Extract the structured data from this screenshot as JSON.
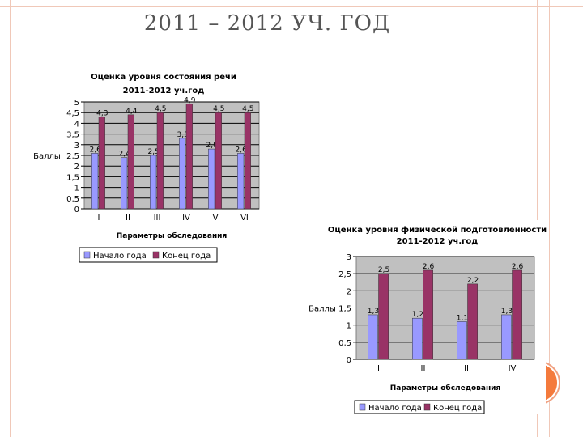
{
  "page": {
    "title": "2011 – 2012 УЧ. ГОД"
  },
  "colors": {
    "series_start": "#9999ff",
    "series_end": "#993366",
    "plot_bg": "#c0c0c0",
    "frame": "#f0c8b8",
    "accent_circle": "#f47a3c"
  },
  "chart_data": [
    {
      "type": "bar",
      "title": "Оценка уровня состояния речи 2011-2012 уч.год",
      "title_lines": [
        "Оценка уровня состояния речи",
        "2011-2012 уч.год"
      ],
      "xlabel": "Параметры обследования",
      "ylabel": "Баллы",
      "ylim": [
        0,
        5
      ],
      "yticks": [
        "0",
        "0,5",
        "1",
        "1,5",
        "2",
        "2,5",
        "3",
        "3,5",
        "4",
        "4,5",
        "5"
      ],
      "categories": [
        "I",
        "II",
        "III",
        "IV",
        "V",
        "VI"
      ],
      "series": [
        {
          "name": "Начало года",
          "values": [
            2.6,
            2.4,
            2.5,
            3.3,
            2.8,
            2.6
          ],
          "labels": [
            "2,6",
            "2,4",
            "2,5",
            "3,3",
            "2,8",
            "2,6"
          ]
        },
        {
          "name": "Конец года",
          "values": [
            4.3,
            4.4,
            4.5,
            4.9,
            4.5,
            4.5
          ],
          "labels": [
            "4,3",
            "4,4",
            "4,5",
            "4,9",
            "4,5",
            "4,5"
          ]
        }
      ],
      "grid": true,
      "legend": "bottom"
    },
    {
      "type": "bar",
      "title": "Оценка уровня физической подготовленности 2011-2012 уч.год",
      "title_lines": [
        "Оценка уровня физической подготовленности",
        "2011-2012 уч.год"
      ],
      "xlabel": "Параметры обследования",
      "ylabel": "Баллы",
      "ylim": [
        0,
        3
      ],
      "yticks": [
        "0",
        "0,5",
        "1",
        "1,5",
        "2",
        "2,5",
        "3"
      ],
      "categories": [
        "I",
        "II",
        "III",
        "IV"
      ],
      "series": [
        {
          "name": "Начало года",
          "values": [
            1.3,
            1.2,
            1.1,
            1.3
          ],
          "labels": [
            "1,3",
            "1,2",
            "1,1",
            "1,3"
          ]
        },
        {
          "name": "Конец года",
          "values": [
            2.5,
            2.6,
            2.2,
            2.6
          ],
          "labels": [
            "2,5",
            "2,6",
            "2,2",
            "2,6"
          ]
        }
      ],
      "grid": true,
      "legend": "bottom"
    }
  ]
}
